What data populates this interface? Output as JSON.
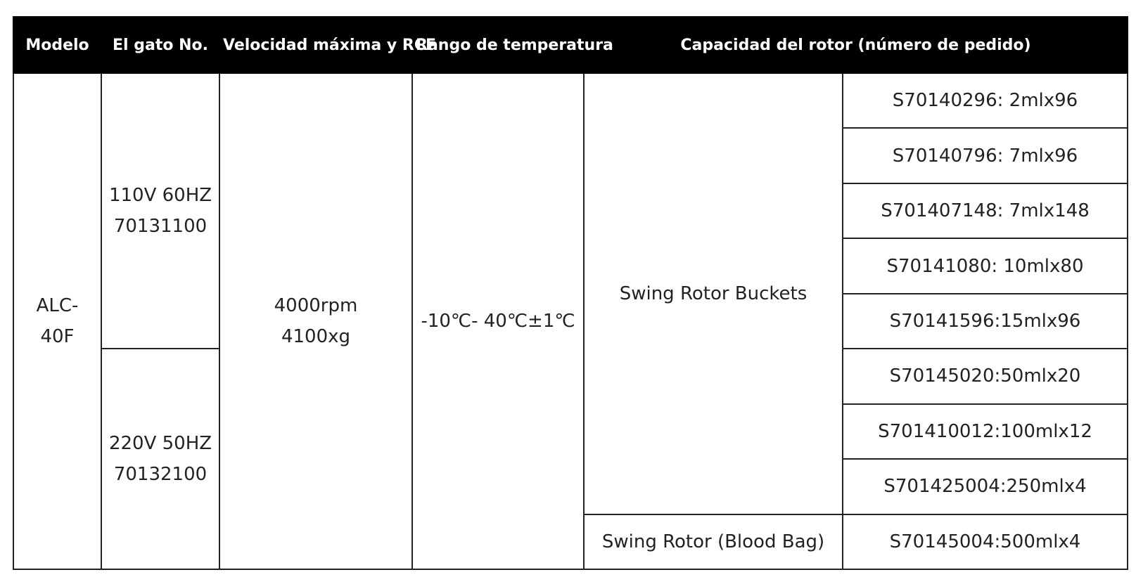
{
  "headers": {
    "model": "Modelo",
    "cat_no": "El gato No.",
    "speed": "Velocidad máxima y RCF",
    "temperature": "Rango de temperatura",
    "capacity": "Capacidad del rotor (número de pedido)"
  },
  "model": {
    "line1": "ALC-",
    "line2": "40F"
  },
  "variants": [
    {
      "voltage": "110V 60HZ",
      "cat_no": "70131100"
    },
    {
      "voltage": "220V 50HZ",
      "cat_no": "70132100"
    }
  ],
  "speed": {
    "rpm": "4000rpm",
    "rcf": "4100xg"
  },
  "temperature": "-10℃- 40℃±1℃",
  "rotor_groups": [
    {
      "name": "Swing Rotor Buckets",
      "codes": [
        "S70140296: 2mlx96",
        "S70140796: 7mlx96",
        "S701407148: 7mlx148",
        "S70141080: 10mlx80",
        "S70141596:15mlx96",
        "S70145020:50mlx20",
        "S701410012:100mlx12",
        "S701425004:250mlx4"
      ]
    },
    {
      "name": "Swing Rotor (Blood Bag)",
      "codes": [
        "S70145004:500mlx4"
      ]
    }
  ]
}
